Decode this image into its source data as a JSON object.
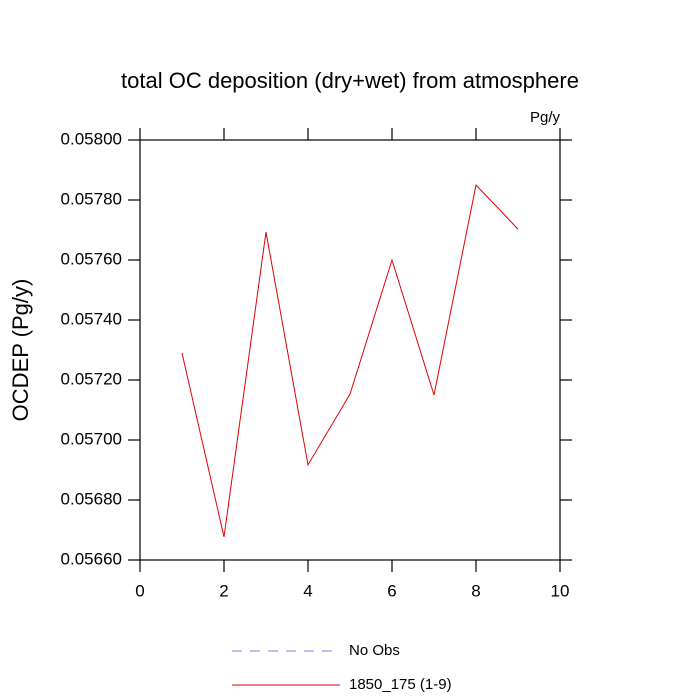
{
  "chart_data": {
    "type": "line",
    "title": "total OC deposition (dry+wet) from atmosphere",
    "units_note": "Pg/y",
    "ylabel": "OCDEP  (Pg/y)",
    "x": [
      1,
      2,
      3,
      4,
      5,
      6,
      7,
      8,
      9
    ],
    "series": [
      {
        "name": "No Obs",
        "color": "#8080e0",
        "dash": true,
        "values": [
          null,
          null,
          null,
          null,
          null,
          null,
          null,
          null,
          null
        ]
      },
      {
        "name": "1850_175 (1-9)",
        "color": "#e00000",
        "dash": false,
        "values": [
          0.05729,
          0.056677,
          0.057693,
          0.056917,
          0.057153,
          0.0576,
          0.05715,
          0.05785,
          0.057703
        ]
      }
    ],
    "xlim": [
      0,
      10
    ],
    "xticks": [
      0,
      2,
      4,
      6,
      8,
      10
    ],
    "ylim": [
      0.0566,
      0.058
    ],
    "yticks": [
      {
        "value": 0.0566,
        "label": "0.05660"
      },
      {
        "value": 0.0568,
        "label": "0.05680"
      },
      {
        "value": 0.057,
        "label": "0.05700"
      },
      {
        "value": 0.0572,
        "label": "0.05720"
      },
      {
        "value": 0.0574,
        "label": "0.05740"
      },
      {
        "value": 0.0576,
        "label": "0.05760"
      },
      {
        "value": 0.0578,
        "label": "0.05780"
      },
      {
        "value": 0.058,
        "label": "0.05800"
      }
    ],
    "grid": false
  }
}
